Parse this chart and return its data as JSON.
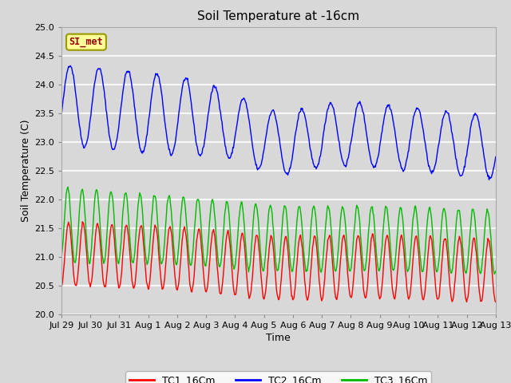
{
  "title": "Soil Temperature at -16cm",
  "xlabel": "Time",
  "ylabel": "Soil Temperature (C)",
  "ylim": [
    20.0,
    25.0
  ],
  "yticks": [
    20.0,
    20.5,
    21.0,
    21.5,
    22.0,
    22.5,
    23.0,
    23.5,
    24.0,
    24.5,
    25.0
  ],
  "xtick_labels": [
    "Jul 29",
    "Jul 30",
    "Jul 31",
    "Aug 1",
    "Aug 2",
    "Aug 3",
    "Aug 4",
    "Aug 5",
    "Aug 6",
    "Aug 7",
    "Aug 8",
    "Aug 9",
    "Aug 10",
    "Aug 11",
    "Aug 12",
    "Aug 13"
  ],
  "bg_color": "#d8d8d8",
  "plot_bg_color": "#d8d8d8",
  "grid_color": "#ffffff",
  "line_colors": [
    "#ff0000",
    "#0000ff",
    "#00bb00"
  ],
  "line_labels": [
    "TC1_16Cm",
    "TC2_16Cm",
    "TC3_16Cm"
  ],
  "annotation_text": "SI_met",
  "annotation_bg": "#ffff99",
  "annotation_border": "#999900",
  "annotation_text_color": "#990000",
  "n_days": 15,
  "tc1_cycles_per_day": 2.0,
  "tc2_cycles_per_day": 1.0,
  "tc3_cycles_per_day": 2.0
}
